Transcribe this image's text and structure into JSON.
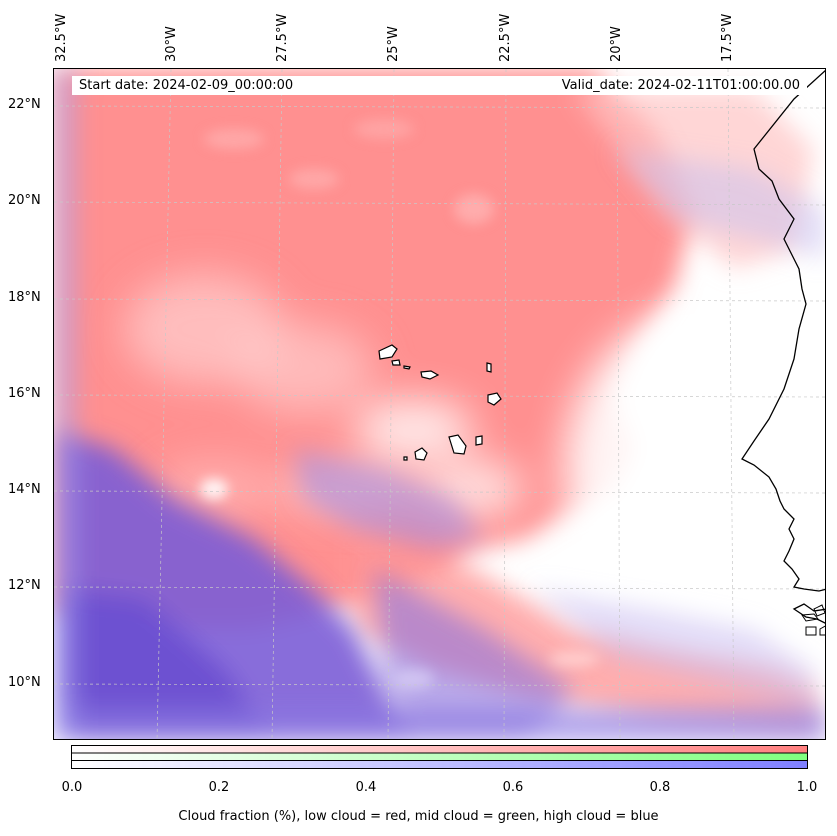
{
  "map": {
    "start_date": "Start date: 2024-02-09_00:00:00",
    "valid_date": "Valid_date: 2024-02-11T01:00:00.00",
    "longitude_labels": [
      "32.5°W",
      "30°W",
      "27.5°W",
      "25°W",
      "22.5°W",
      "20°W",
      "17.5°W"
    ],
    "latitude_labels": [
      "22°N",
      "20°N",
      "18°N",
      "16°N",
      "14°N",
      "12°N",
      "10°N"
    ]
  },
  "colorbar": {
    "ticks": [
      "0.0",
      "0.2",
      "0.4",
      "0.6",
      "0.8",
      "1.0"
    ],
    "label": "Cloud fraction (%), low cloud = red, mid cloud = green, high cloud = blue",
    "bands": [
      {
        "name": "low cloud",
        "color": "#ff7f7f"
      },
      {
        "name": "mid cloud",
        "color": "#7fff7f"
      },
      {
        "name": "high cloud",
        "color": "#7f7fff"
      }
    ]
  },
  "colors": {
    "low_cloud": "#ff8080",
    "high_cloud": "#7a5cd6",
    "coastline": "#000000",
    "gridline": "#c8c8c8"
  }
}
